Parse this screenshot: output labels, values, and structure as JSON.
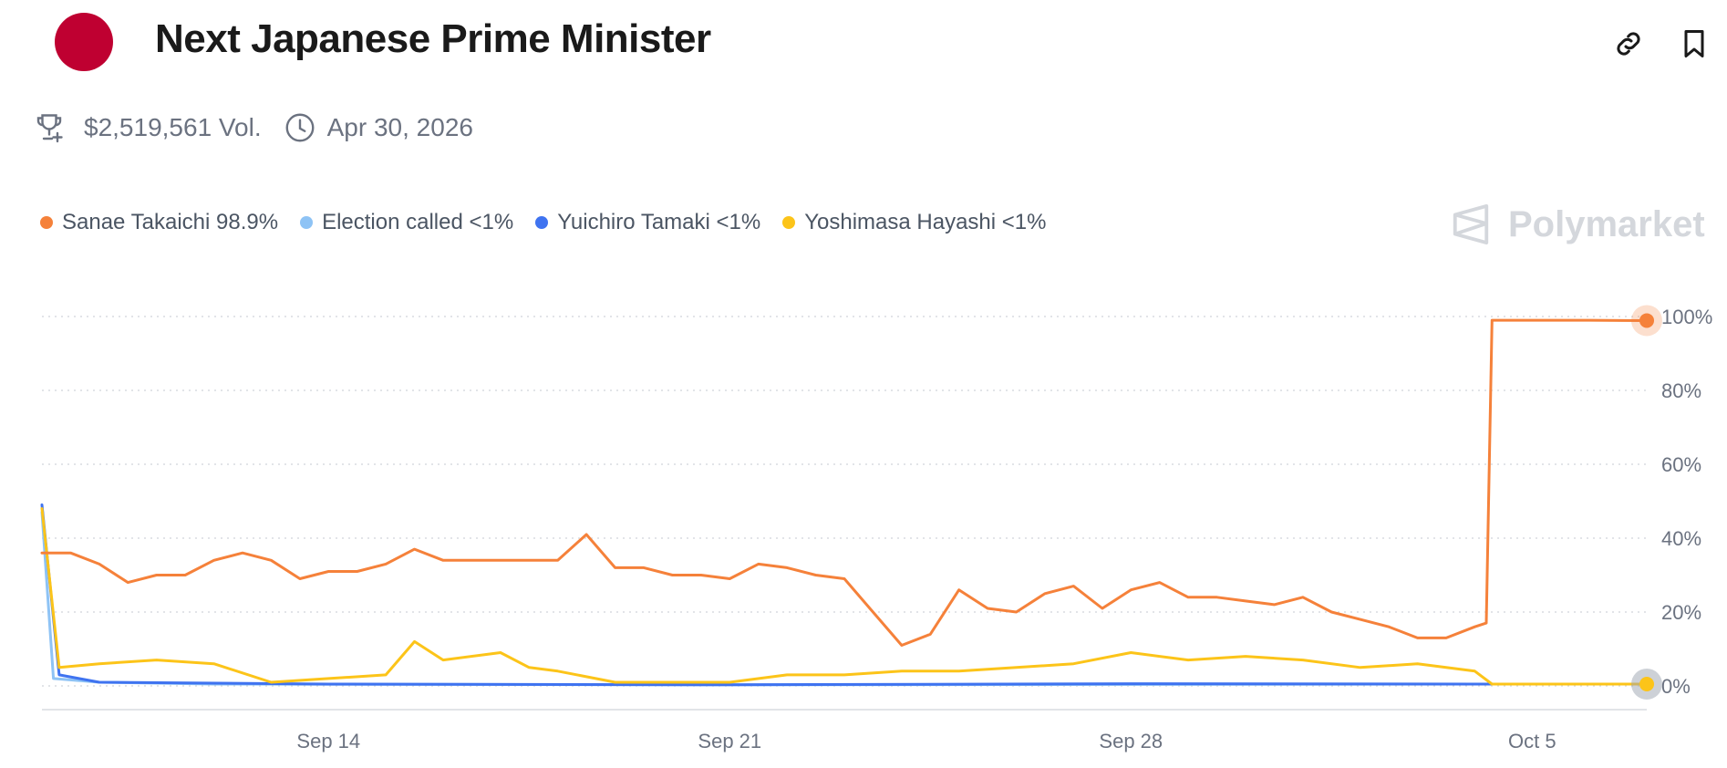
{
  "header": {
    "title": "Next Japanese Prime Minister",
    "flag_color": "#bf0031",
    "flag_icon": "japan-flag-icon",
    "actions": [
      {
        "icon": "link-icon"
      },
      {
        "icon": "bookmark-icon"
      }
    ]
  },
  "meta": {
    "volume": "$2,519,561 Vol.",
    "volume_icon": "trophy-icon",
    "end_date": "Apr 30, 2026",
    "date_icon": "clock-icon"
  },
  "legend": [
    {
      "label": "Sanae Takaichi 98.9%",
      "color": "#f5813a"
    },
    {
      "label": "Election called <1%",
      "color": "#8ec3f5"
    },
    {
      "label": "Yuichiro Tamaki <1%",
      "color": "#3f73f0"
    },
    {
      "label": "Yoshimasa Hayashi <1%",
      "color": "#fcc419"
    }
  ],
  "brand": {
    "name": "Polymarket",
    "icon": "polymarket-logo-icon"
  },
  "chart_data": {
    "type": "line",
    "x_ticks": [
      "Sep 14",
      "Sep 21",
      "Sep 28",
      "Oct 5"
    ],
    "y_ticks": [
      "0%",
      "20%",
      "40%",
      "60%",
      "80%",
      "100%"
    ],
    "ylim": [
      0,
      100
    ],
    "xlim": [
      "2025-09-09",
      "2025-10-07"
    ],
    "grid": "dotted-horizontal",
    "y_axis_side": "right",
    "series": [
      {
        "name": "Sanae Takaichi",
        "color": "#f5813a",
        "points": [
          [
            "2025-09-09",
            36
          ],
          [
            "2025-09-09.5",
            36
          ],
          [
            "2025-09-10",
            33
          ],
          [
            "2025-09-10.5",
            28
          ],
          [
            "2025-09-11",
            30
          ],
          [
            "2025-09-11.5",
            30
          ],
          [
            "2025-09-12",
            34
          ],
          [
            "2025-09-12.5",
            36
          ],
          [
            "2025-09-13",
            34
          ],
          [
            "2025-09-13.5",
            29
          ],
          [
            "2025-09-14",
            31
          ],
          [
            "2025-09-14.5",
            31
          ],
          [
            "2025-09-15",
            33
          ],
          [
            "2025-09-15.5",
            37
          ],
          [
            "2025-09-16",
            34
          ],
          [
            "2025-09-16.5",
            34
          ],
          [
            "2025-09-17",
            34
          ],
          [
            "2025-09-17.5",
            34
          ],
          [
            "2025-09-18",
            34
          ],
          [
            "2025-09-18.5",
            41
          ],
          [
            "2025-09-19",
            32
          ],
          [
            "2025-09-19.5",
            32
          ],
          [
            "2025-09-20",
            30
          ],
          [
            "2025-09-20.5",
            30
          ],
          [
            "2025-09-21",
            29
          ],
          [
            "2025-09-21.5",
            33
          ],
          [
            "2025-09-22",
            32
          ],
          [
            "2025-09-22.5",
            30
          ],
          [
            "2025-09-23",
            29
          ],
          [
            "2025-09-23.5",
            20
          ],
          [
            "2025-09-24",
            11
          ],
          [
            "2025-09-24.5",
            14
          ],
          [
            "2025-09-25",
            26
          ],
          [
            "2025-09-25.5",
            21
          ],
          [
            "2025-09-26",
            20
          ],
          [
            "2025-09-26.5",
            25
          ],
          [
            "2025-09-27",
            27
          ],
          [
            "2025-09-27.5",
            21
          ],
          [
            "2025-09-28",
            26
          ],
          [
            "2025-09-28.5",
            28
          ],
          [
            "2025-09-29",
            24
          ],
          [
            "2025-09-29.5",
            24
          ],
          [
            "2025-09-30",
            23
          ],
          [
            "2025-09-30.5",
            22
          ],
          [
            "2025-10-01",
            24
          ],
          [
            "2025-10-01.5",
            20
          ],
          [
            "2025-10-02",
            18
          ],
          [
            "2025-10-02.5",
            16
          ],
          [
            "2025-10-03",
            13
          ],
          [
            "2025-10-03.5",
            13
          ],
          [
            "2025-10-04",
            16
          ],
          [
            "2025-10-04.2",
            17
          ],
          [
            "2025-10-04.3",
            99
          ],
          [
            "2025-10-05",
            99
          ],
          [
            "2025-10-06",
            99
          ],
          [
            "2025-10-07",
            98.9
          ]
        ]
      },
      {
        "name": "Election called",
        "color": "#8ec3f5",
        "points": [
          [
            "2025-09-09",
            47
          ],
          [
            "2025-09-09.2",
            2
          ],
          [
            "2025-09-10",
            1
          ],
          [
            "2025-09-12",
            0.5
          ],
          [
            "2025-09-21",
            0.3
          ],
          [
            "2025-10-04",
            0.5
          ],
          [
            "2025-10-07",
            0.5
          ]
        ]
      },
      {
        "name": "Yuichiro Tamaki",
        "color": "#3f73f0",
        "points": [
          [
            "2025-09-09",
            49
          ],
          [
            "2025-09-09.3",
            3
          ],
          [
            "2025-09-10",
            1
          ],
          [
            "2025-09-14",
            0.5
          ],
          [
            "2025-09-21",
            0.3
          ],
          [
            "2025-09-28",
            0.6
          ],
          [
            "2025-10-04",
            0.5
          ],
          [
            "2025-10-07",
            0.5
          ]
        ]
      },
      {
        "name": "Yoshimasa Hayashi",
        "color": "#fcc419",
        "points": [
          [
            "2025-09-09",
            48
          ],
          [
            "2025-09-09.3",
            5
          ],
          [
            "2025-09-10",
            6
          ],
          [
            "2025-09-11",
            7
          ],
          [
            "2025-09-12",
            6
          ],
          [
            "2025-09-13",
            1
          ],
          [
            "2025-09-14",
            2
          ],
          [
            "2025-09-15",
            3
          ],
          [
            "2025-09-15.5",
            12
          ],
          [
            "2025-09-16",
            7
          ],
          [
            "2025-09-17",
            9
          ],
          [
            "2025-09-17.5",
            5
          ],
          [
            "2025-09-18",
            4
          ],
          [
            "2025-09-19",
            1
          ],
          [
            "2025-09-21",
            1
          ],
          [
            "2025-09-22",
            3
          ],
          [
            "2025-09-23",
            3
          ],
          [
            "2025-09-24",
            4
          ],
          [
            "2025-09-25",
            4
          ],
          [
            "2025-09-26",
            5
          ],
          [
            "2025-09-27",
            6
          ],
          [
            "2025-09-28",
            9
          ],
          [
            "2025-09-29",
            7
          ],
          [
            "2025-09-30",
            8
          ],
          [
            "2025-10-01",
            7
          ],
          [
            "2025-10-02",
            5
          ],
          [
            "2025-10-03",
            6
          ],
          [
            "2025-10-04",
            4
          ],
          [
            "2025-10-04.3",
            0.5
          ],
          [
            "2025-10-07",
            0.5
          ]
        ]
      }
    ]
  }
}
